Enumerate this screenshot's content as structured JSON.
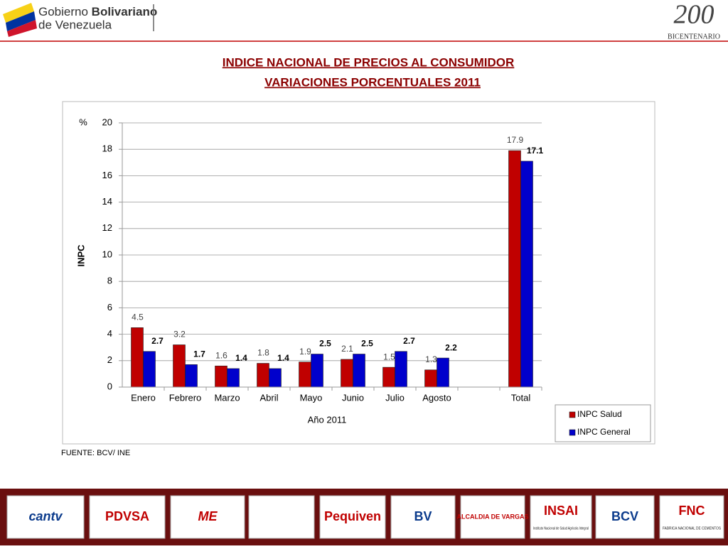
{
  "header": {
    "org_light": "Gobierno",
    "org_bold": "Bolivariano",
    "org_line2": "de Venezuela",
    "emblem_number": "200",
    "emblem_text": "BICENTENARIO"
  },
  "chart_data": {
    "type": "bar",
    "title": "INDICE NACIONAL DE PRECIOS AL CONSUMIDOR",
    "subtitle": "VARIACIONES PORCENTUALES  2011",
    "y_unit": "%",
    "y_label": "INPC",
    "x_label": "Año 2011",
    "categories": [
      "Enero",
      "Febrero",
      "Marzo",
      "Abril",
      "Mayo",
      "Junio",
      "Julio",
      "Agosto",
      null,
      "Total"
    ],
    "series": [
      {
        "name": "INPC Salud",
        "color": "#c00000",
        "values": [
          4.5,
          3.2,
          1.6,
          1.8,
          1.9,
          2.1,
          1.5,
          1.3,
          null,
          17.9
        ]
      },
      {
        "name": "INPC General",
        "color": "#0000cc",
        "values": [
          2.7,
          1.7,
          1.4,
          1.4,
          2.5,
          2.5,
          2.7,
          2.2,
          null,
          17.1
        ]
      }
    ],
    "ylim": [
      0,
      20
    ],
    "yticks": [
      0,
      2,
      4,
      6,
      8,
      10,
      12,
      14,
      16,
      18,
      20
    ],
    "grid": true,
    "legend": "bottom-right",
    "source": "FUENTE: BCV/ INE"
  },
  "footer": {
    "logos": [
      "cantv",
      "PDVSA",
      "ME",
      "Pequiven",
      "BV",
      "ALCALDIA DE VARGAS",
      "INSAI",
      "Instituto Nacional de Salud Agrícola Integral",
      "BCV",
      "FNC",
      "FABRICA NACIONAL DE CEMENTOS"
    ]
  }
}
